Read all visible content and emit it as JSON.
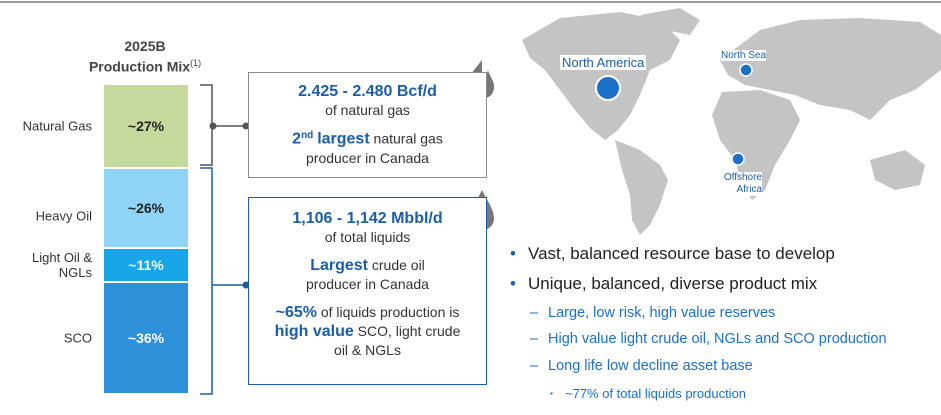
{
  "chart_data": {
    "type": "stacked_bar",
    "title": "2025B",
    "subtitle": "Production Mix",
    "subtitle_note": "(1)",
    "categories": [
      "Natural Gas",
      "Heavy Oil",
      "Light Oil & NGLs",
      "SCO"
    ],
    "values": [
      27,
      26,
      11,
      36
    ],
    "value_labels": [
      "~27%",
      "~26%",
      "~11%",
      "~36%"
    ],
    "colors": [
      "#c5d99d",
      "#8fd4f6",
      "#18a6e8",
      "#2e90d8"
    ],
    "label_colors": [
      "#222222",
      "#222222",
      "#ffffff",
      "#ffffff"
    ]
  },
  "gas_box": {
    "headline": "2.425 - 2.480 Bcf/d",
    "headline_sub": "of natural gas",
    "rank_number": "2",
    "rank_suffix": "nd",
    "rank_word": "largest",
    "rank_rest": "natural gas producer in Canada"
  },
  "liquids_box": {
    "headline": "1,106 - 1,142 Mbbl/d",
    "headline_sub": "of total liquids",
    "rank_word": "Largest",
    "rank_rest": "crude oil producer in Canada",
    "share": "~65%",
    "share_text": "of liquids production is",
    "share_bold": "high value",
    "share_rest": "SCO, light crude oil & NGLs"
  },
  "map": {
    "labels": [
      "North America",
      "North Sea",
      "Offshore Africa"
    ]
  },
  "bullets": [
    {
      "level": 1,
      "text": "Vast, balanced resource base to develop"
    },
    {
      "level": 1,
      "text": "Unique, balanced, diverse product mix"
    },
    {
      "level": 2,
      "text": "Large, low risk, high value reserves"
    },
    {
      "level": 2,
      "text": "High value light crude oil, NGLs and SCO production"
    },
    {
      "level": 2,
      "text": "Long life low decline asset base"
    },
    {
      "level": 3,
      "text": "~77% of total liquids production"
    }
  ]
}
